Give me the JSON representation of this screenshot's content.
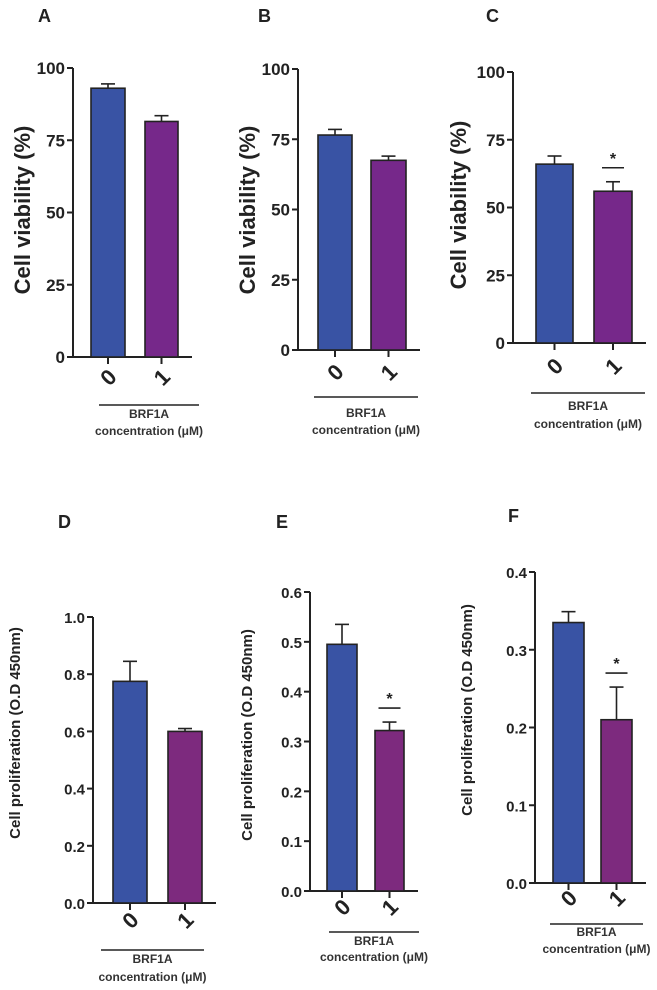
{
  "chart_data": [
    {
      "panel": "A",
      "type": "bar",
      "ylabel": "Cell viability (%)",
      "xlabel": [
        "BRF1A",
        "concentration (μM)"
      ],
      "categories": [
        "0",
        "1"
      ],
      "values": [
        93,
        81.5
      ],
      "errors": [
        1.5,
        2
      ],
      "ylim": [
        0,
        100
      ],
      "yticks": [
        "0",
        "25",
        "50",
        "75",
        "100"
      ],
      "significance": [
        false,
        false
      ],
      "colors": [
        "#3953a4",
        "#76288a"
      ]
    },
    {
      "panel": "B",
      "type": "bar",
      "ylabel": "Cell viability (%)",
      "xlabel": [
        "BRF1A",
        "concentration (μM)"
      ],
      "categories": [
        "0",
        "1"
      ],
      "values": [
        76.5,
        67.5
      ],
      "errors": [
        2,
        1.5
      ],
      "ylim": [
        0,
        100
      ],
      "yticks": [
        "0",
        "25",
        "50",
        "75",
        "100"
      ],
      "significance": [
        false,
        false
      ],
      "colors": [
        "#3953a4",
        "#76288a"
      ]
    },
    {
      "panel": "C",
      "type": "bar",
      "ylabel": "Cell viability  (%)",
      "xlabel": [
        "BRF1A",
        "concentration (μM)"
      ],
      "categories": [
        "0",
        "1"
      ],
      "values": [
        66,
        56
      ],
      "errors": [
        3,
        3.5
      ],
      "ylim": [
        0,
        100
      ],
      "yticks": [
        "0",
        "25",
        "50",
        "75",
        "100"
      ],
      "significance": [
        false,
        "*"
      ],
      "colors": [
        "#3953a4",
        "#76288a"
      ]
    },
    {
      "panel": "D",
      "type": "bar",
      "ylabel": "Cell proliferation (O.D 450nm)",
      "xlabel": [
        "BRF1A",
        "concentration (μM)"
      ],
      "categories": [
        "0",
        "1"
      ],
      "values": [
        0.775,
        0.6
      ],
      "errors": [
        0.07,
        0.01
      ],
      "ylim": [
        0,
        1.0
      ],
      "yticks": [
        "0.0",
        "0.2",
        "0.4",
        "0.6",
        "0.8",
        "1.0"
      ],
      "significance": [
        false,
        false
      ],
      "colors": [
        "#3953a4",
        "#7d2a7e"
      ]
    },
    {
      "panel": "E",
      "type": "bar",
      "ylabel": "Cell proliferation (O.D 450nm)",
      "xlabel": [
        "BRF1A",
        "concentration (μM)"
      ],
      "categories": [
        "0",
        "1"
      ],
      "values": [
        0.495,
        0.322
      ],
      "errors": [
        0.04,
        0.017
      ],
      "ylim": [
        0,
        0.6
      ],
      "yticks": [
        "0.0",
        "0.1",
        "0.2",
        "0.3",
        "0.4",
        "0.5",
        "0.6"
      ],
      "significance": [
        false,
        "*"
      ],
      "colors": [
        "#3953a4",
        "#7d2a7e"
      ]
    },
    {
      "panel": "F",
      "type": "bar",
      "ylabel": "Cell proliferation (O.D 450nm)",
      "xlabel": [
        "BRF1A",
        "concentration (μM)"
      ],
      "categories": [
        "0",
        "1"
      ],
      "values": [
        0.335,
        0.21
      ],
      "errors": [
        0.014,
        0.042
      ],
      "ylim": [
        0,
        0.4
      ],
      "yticks": [
        "0.0",
        "0.1",
        "0.2",
        "0.3",
        "0.4"
      ],
      "significance": [
        false,
        "*"
      ],
      "colors": [
        "#3953a4",
        "#7d2a7e"
      ]
    }
  ]
}
